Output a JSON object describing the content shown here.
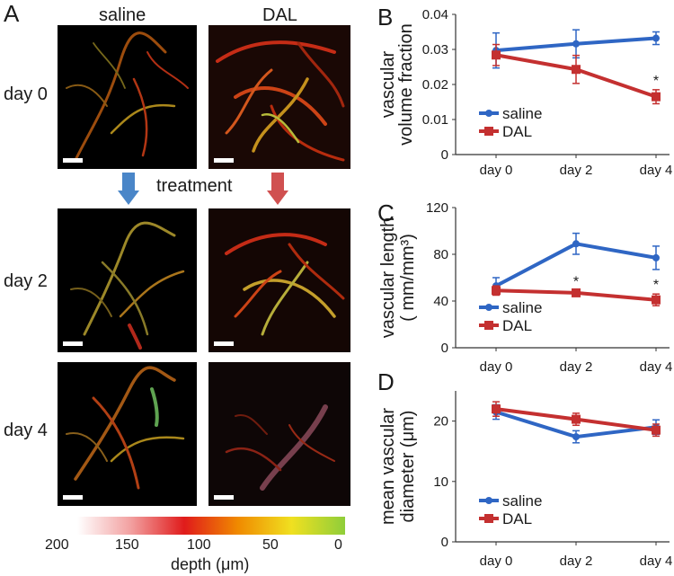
{
  "panel_a": {
    "letter": "A",
    "col_labels": [
      "saline",
      "DAL"
    ],
    "row_labels": [
      "day 0",
      "day 2",
      "day 4"
    ],
    "treatment_label": "treatment",
    "colorbar": {
      "ticks": [
        "200",
        "150",
        "100",
        "50",
        "0"
      ],
      "label": "depth (μm)",
      "colors": [
        "#ffffff",
        "#f2a0a0",
        "#e01b1b",
        "#f08a00",
        "#f0e020",
        "#8fce3a"
      ]
    },
    "arrow_colors": {
      "saline": "#4a86c8",
      "dal": "#d05050"
    }
  },
  "chart_data": [
    {
      "letter": "B",
      "type": "line",
      "categories": [
        "day 0",
        "day 2",
        "day 4"
      ],
      "ylabel_lines": [
        "vascular",
        "volume fraction"
      ],
      "yticks": [
        "0",
        "0.01",
        "0.02",
        "0.03",
        "0.04"
      ],
      "ylim": [
        0,
        0.04
      ],
      "legend": "bottom-left",
      "series": [
        {
          "name": "saline",
          "color": "#2f66c4",
          "values": [
            0.0297,
            0.0316,
            0.0332
          ],
          "errors": [
            0.005,
            0.004,
            0.0018
          ]
        },
        {
          "name": "DAL",
          "color": "#c43030",
          "values": [
            0.0284,
            0.0243,
            0.0165
          ],
          "errors": [
            0.003,
            0.004,
            0.002
          ]
        }
      ],
      "significance": [
        {
          "series": "DAL",
          "index": 2,
          "mark": "*"
        }
      ]
    },
    {
      "letter": "C",
      "type": "line",
      "categories": [
        "day 0",
        "day 2",
        "day 4"
      ],
      "ylabel_lines": [
        "vascular length",
        "( mm/mm³)"
      ],
      "yticks": [
        "0",
        "40",
        "80",
        "120"
      ],
      "ylim": [
        0,
        120
      ],
      "legend": "bottom-left",
      "series": [
        {
          "name": "saline",
          "color": "#2f66c4",
          "values": [
            53,
            89,
            77
          ],
          "errors": [
            7,
            9,
            10
          ]
        },
        {
          "name": "DAL",
          "color": "#c43030",
          "values": [
            49,
            47,
            41
          ],
          "errors": [
            4,
            2,
            5
          ]
        }
      ],
      "significance": [
        {
          "series": "DAL",
          "index": 1,
          "mark": "*"
        },
        {
          "series": "DAL",
          "index": 2,
          "mark": "*"
        }
      ]
    },
    {
      "letter": "D",
      "type": "line",
      "categories": [
        "day 0",
        "day 2",
        "day 4"
      ],
      "ylabel_lines": [
        "mean vascular",
        "diameter (μm)"
      ],
      "yticks": [
        "0",
        "10",
        "20"
      ],
      "ylim": [
        0,
        25
      ],
      "legend": "bottom-left",
      "series": [
        {
          "name": "saline",
          "color": "#2f66c4",
          "values": [
            21.5,
            17.4,
            19.0
          ],
          "errors": [
            1.2,
            1.0,
            1.2
          ]
        },
        {
          "name": "DAL",
          "color": "#c43030",
          "values": [
            22.0,
            20.3,
            18.5
          ],
          "errors": [
            1.2,
            1.0,
            1.0
          ]
        }
      ],
      "significance": []
    }
  ]
}
